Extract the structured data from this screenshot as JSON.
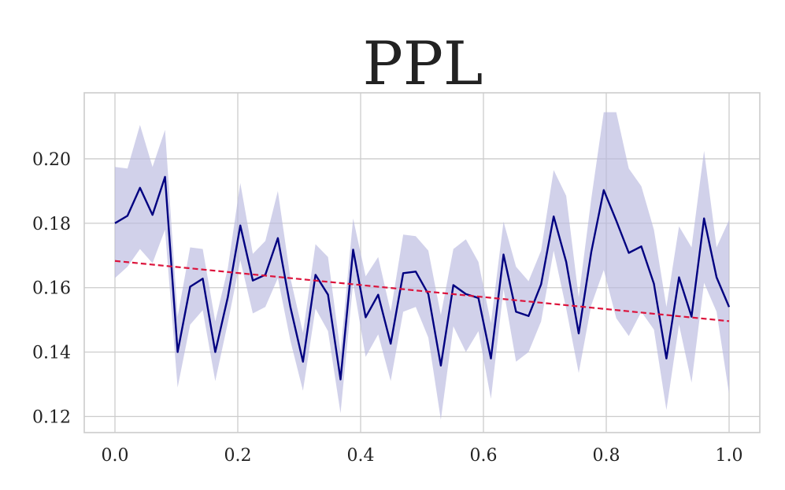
{
  "chart_data": {
    "type": "line",
    "title": "PPL",
    "xlabel": "",
    "ylabel": "",
    "xlim": [
      -0.05,
      1.05
    ],
    "ylim": [
      0.115,
      0.2205
    ],
    "x_ticks": [
      0.0,
      0.2,
      0.4,
      0.6,
      0.8,
      1.0
    ],
    "x_tick_labels": [
      "0.0",
      "0.2",
      "0.4",
      "0.6",
      "0.8",
      "1.0"
    ],
    "y_ticks": [
      0.12,
      0.14,
      0.16,
      0.18,
      0.2
    ],
    "y_tick_labels": [
      "0.12",
      "0.14",
      "0.16",
      "0.18",
      "0.20"
    ],
    "grid": true,
    "colors": {
      "line": "#000080",
      "band": "#b8b8de",
      "trend": "#dc143c",
      "grid": "#cccccc",
      "spine": "#cccccc"
    },
    "x": [
      0.0,
      0.0204,
      0.0408,
      0.0612,
      0.0816,
      0.102,
      0.1224,
      0.1429,
      0.1633,
      0.1837,
      0.2041,
      0.2245,
      0.2449,
      0.2653,
      0.2857,
      0.3061,
      0.3265,
      0.3469,
      0.3673,
      0.3878,
      0.4082,
      0.4286,
      0.449,
      0.4694,
      0.4898,
      0.5102,
      0.5306,
      0.551,
      0.5714,
      0.5918,
      0.6122,
      0.6327,
      0.6531,
      0.6735,
      0.6939,
      0.7143,
      0.7347,
      0.7551,
      0.7755,
      0.7959,
      0.8163,
      0.8367,
      0.8571,
      0.8776,
      0.898,
      0.9184,
      0.9388,
      0.9592,
      0.9796,
      1.0
    ],
    "series": [
      {
        "values": [
          0.18,
          0.1823,
          0.191,
          0.1826,
          0.1944,
          0.14,
          0.1603,
          0.1628,
          0.14,
          0.157,
          0.1793,
          0.1622,
          0.164,
          0.1754,
          0.154,
          0.137,
          0.164,
          0.1578,
          0.1315,
          0.1718,
          0.1508,
          0.1578,
          0.1426,
          0.1645,
          0.165,
          0.158,
          0.1358,
          0.1608,
          0.158,
          0.1568,
          0.138,
          0.1703,
          0.1525,
          0.1512,
          0.161,
          0.1821,
          0.168,
          0.1458,
          0.171,
          0.1903,
          0.1808,
          0.1708,
          0.1728,
          0.1612,
          0.138,
          0.1632,
          0.151,
          0.1815,
          0.1632,
          0.154
        ],
        "lower": [
          0.163,
          0.1665,
          0.172,
          0.1676,
          0.178,
          0.129,
          0.1485,
          0.153,
          0.131,
          0.149,
          0.1685,
          0.152,
          0.154,
          0.163,
          0.1435,
          0.128,
          0.1535,
          0.1465,
          0.121,
          0.1615,
          0.1385,
          0.1455,
          0.131,
          0.1525,
          0.154,
          0.1445,
          0.119,
          0.148,
          0.14,
          0.1465,
          0.1255,
          0.1595,
          0.137,
          0.14,
          0.1495,
          0.1715,
          0.1535,
          0.1335,
          0.1545,
          0.1655,
          0.1505,
          0.145,
          0.1525,
          0.147,
          0.122,
          0.1485,
          0.1305,
          0.1615,
          0.1525,
          0.127
        ],
        "upper": [
          0.1975,
          0.197,
          0.2105,
          0.1975,
          0.209,
          0.151,
          0.1725,
          0.172,
          0.1495,
          0.166,
          0.1925,
          0.1705,
          0.1745,
          0.19,
          0.163,
          0.146,
          0.1735,
          0.1695,
          0.14,
          0.1815,
          0.1635,
          0.1695,
          0.1525,
          0.1765,
          0.176,
          0.1715,
          0.1515,
          0.172,
          0.175,
          0.168,
          0.149,
          0.1805,
          0.1665,
          0.162,
          0.1715,
          0.1965,
          0.1885,
          0.157,
          0.1875,
          0.2145,
          0.2145,
          0.197,
          0.1915,
          0.178,
          0.154,
          0.179,
          0.1725,
          0.2025,
          0.1725,
          0.181
        ]
      }
    ],
    "trend": {
      "x": [
        0.0,
        1.0
      ],
      "y": [
        0.1683,
        0.1496
      ]
    }
  }
}
